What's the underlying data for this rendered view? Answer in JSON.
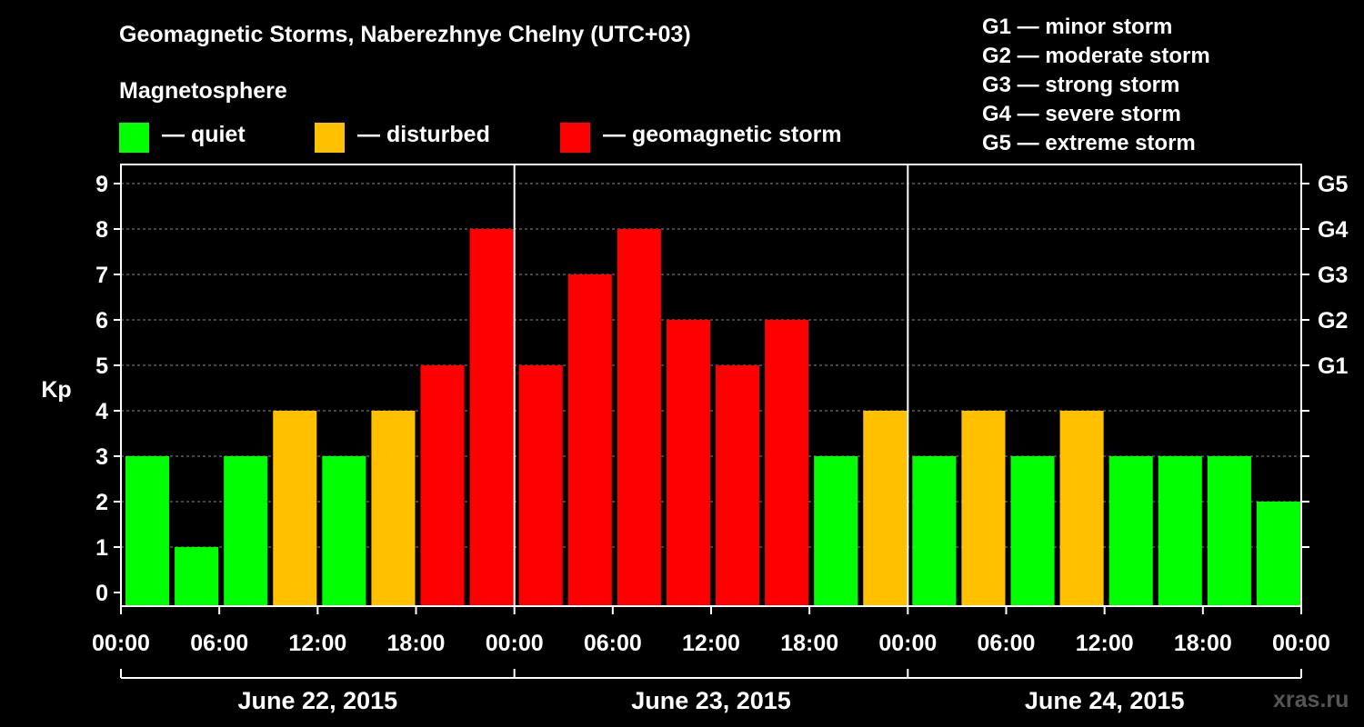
{
  "colors": {
    "quiet": "#00ff00",
    "disturbed": "#ffc000",
    "storm": "#ff0000",
    "background": "#000000",
    "axis": "#ffffff"
  },
  "header": {
    "title": "Geomagnetic Storms, Naberezhnye Chelny (UTC+03)",
    "magnetosphere_label": "Magnetosphere"
  },
  "legend": [
    {
      "key": "quiet",
      "label": "— quiet"
    },
    {
      "key": "disturbed",
      "label": "— disturbed"
    },
    {
      "key": "storm",
      "label": "— geomagnetic storm"
    }
  ],
  "storm_scale": [
    "G1 — minor storm",
    "G2 — moderate storm",
    "G3 — strong storm",
    "G4 — severe storm",
    "G5 — extreme storm"
  ],
  "watermark": "xras.ru",
  "chart_data": {
    "type": "bar",
    "title": "Geomagnetic Storms, Naberezhnye Chelny (UTC+03)",
    "ylabel": "Kp",
    "xlabel": "",
    "ylim": [
      0,
      9
    ],
    "yticks": [
      "0",
      "1",
      "2",
      "3",
      "4",
      "5",
      "6",
      "7",
      "8",
      "9"
    ],
    "right_ticks": [
      {
        "value": 5,
        "label": "G1"
      },
      {
        "value": 6,
        "label": "G2"
      },
      {
        "value": 7,
        "label": "G3"
      },
      {
        "value": 8,
        "label": "G4"
      },
      {
        "value": 9,
        "label": "G5"
      }
    ],
    "xtick_labels": [
      "00:00",
      "06:00",
      "12:00",
      "18:00",
      "00:00",
      "06:00",
      "12:00",
      "18:00",
      "00:00",
      "06:00",
      "12:00",
      "18:00",
      "00:00"
    ],
    "days": [
      "June 22, 2015",
      "June 23, 2015",
      "June 24, 2015"
    ],
    "bars_per_day": 8,
    "values": [
      3,
      1,
      3,
      4,
      3,
      4,
      5,
      8,
      5,
      7,
      8,
      6,
      5,
      6,
      3,
      4,
      3,
      4,
      3,
      4,
      3,
      3,
      3,
      2
    ],
    "levels": [
      "quiet",
      "quiet",
      "quiet",
      "disturbed",
      "quiet",
      "disturbed",
      "storm",
      "storm",
      "storm",
      "storm",
      "storm",
      "storm",
      "storm",
      "storm",
      "quiet",
      "disturbed",
      "quiet",
      "disturbed",
      "quiet",
      "disturbed",
      "quiet",
      "quiet",
      "quiet",
      "quiet"
    ],
    "grid": true
  }
}
